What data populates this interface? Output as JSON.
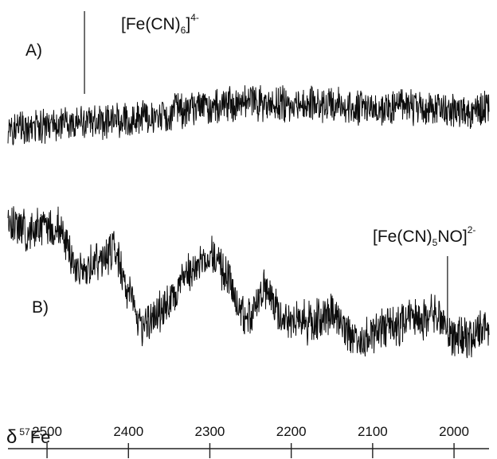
{
  "chart_data": {
    "type": "line",
    "x_axis_label": "δ 57Fe",
    "x_axis_label_parts": {
      "delta": "δ",
      "mass": "57",
      "element": "Fe"
    },
    "xlim": [
      2548,
      1957
    ],
    "x_reversed": true,
    "x_ticks": [
      2500,
      2400,
      2300,
      2200,
      2100,
      2000
    ],
    "x_tick_labels": [
      "2500",
      "2400",
      "2300",
      "2200",
      "2100",
      "2000"
    ],
    "series": [
      {
        "name": "A)",
        "noise": "high",
        "baseline": [
          [
            2548,
            0.2
          ],
          [
            2500,
            0.23
          ],
          [
            2400,
            0.32
          ],
          [
            2300,
            0.45
          ],
          [
            2250,
            0.5
          ],
          [
            2200,
            0.47
          ],
          [
            2100,
            0.44
          ],
          [
            2000,
            0.42
          ],
          [
            1957,
            0.42
          ]
        ]
      },
      {
        "name": "B)",
        "noise": "high",
        "baseline": [
          [
            2548,
            0.9
          ],
          [
            2525,
            0.85
          ],
          [
            2490,
            0.88
          ],
          [
            2460,
            0.6
          ],
          [
            2430,
            0.68
          ],
          [
            2418,
            0.75
          ],
          [
            2400,
            0.45
          ],
          [
            2385,
            0.25
          ],
          [
            2360,
            0.35
          ],
          [
            2320,
            0.6
          ],
          [
            2300,
            0.72
          ],
          [
            2280,
            0.58
          ],
          [
            2255,
            0.3
          ],
          [
            2230,
            0.48
          ],
          [
            2210,
            0.3
          ],
          [
            2180,
            0.28
          ],
          [
            2150,
            0.32
          ],
          [
            2120,
            0.18
          ],
          [
            2080,
            0.25
          ],
          [
            2040,
            0.3
          ],
          [
            2020,
            0.32
          ],
          [
            2000,
            0.18
          ],
          [
            1957,
            0.22
          ]
        ]
      }
    ],
    "annotations": [
      {
        "series": "A)",
        "x": 2454,
        "main": "[Fe(CN)",
        "sub": "6",
        "close": "]",
        "sup": "4-"
      },
      {
        "series": "B)",
        "x": 2008,
        "main": "[Fe(CN)",
        "sub": "5",
        "close": "NO]",
        "sup": "2-"
      }
    ],
    "grid": false,
    "legend": "none"
  }
}
